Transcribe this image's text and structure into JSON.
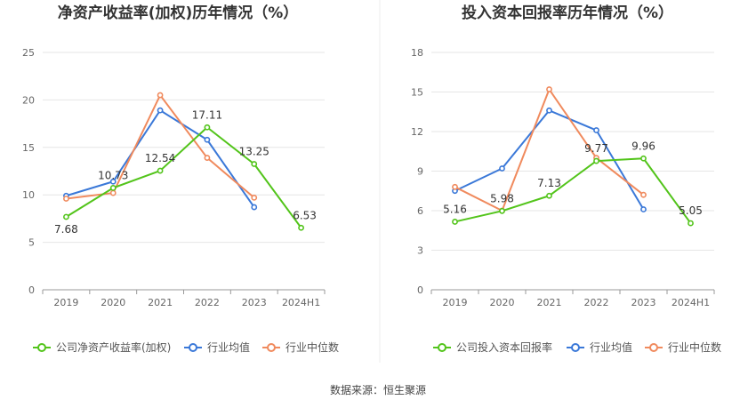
{
  "chart_data": [
    {
      "type": "line",
      "title": "净资产收益率(加权)历年情况（%）",
      "categories": [
        "2019",
        "2020",
        "2021",
        "2022",
        "2023",
        "2024H1"
      ],
      "ylim": [
        0,
        25
      ],
      "yticks": [
        "0",
        "5",
        "10",
        "15",
        "20",
        "25"
      ],
      "grid": true,
      "legend_placement": "bottom",
      "series": [
        {
          "name": "公司净资产收益率(加权)",
          "color": "#52c41a",
          "values": [
            7.68,
            10.73,
            12.54,
            17.11,
            13.25,
            6.53
          ],
          "labels": [
            "7.68",
            "10.73",
            "12.54",
            "17.11",
            "13.25",
            "6.53"
          ]
        },
        {
          "name": "行业均值",
          "color": "#3a78d8",
          "values": [
            9.9,
            11.4,
            18.9,
            15.8,
            8.7,
            null
          ]
        },
        {
          "name": "行业中位数",
          "color": "#f08a5d",
          "values": [
            9.6,
            10.2,
            20.5,
            13.9,
            9.7,
            null
          ]
        }
      ]
    },
    {
      "type": "line",
      "title": "投入资本回报率历年情况（%）",
      "categories": [
        "2019",
        "2020",
        "2021",
        "2022",
        "2023",
        "2024H1"
      ],
      "ylim": [
        0,
        18
      ],
      "yticks": [
        "0",
        "3",
        "6",
        "9",
        "12",
        "15",
        "18"
      ],
      "grid": true,
      "legend_placement": "bottom",
      "series": [
        {
          "name": "公司投入资本回报率",
          "color": "#52c41a",
          "values": [
            5.16,
            5.98,
            7.13,
            9.77,
            9.96,
            5.05
          ],
          "labels": [
            "5.16",
            "5.98",
            "7.13",
            "9.77",
            "9.96",
            "5.05"
          ]
        },
        {
          "name": "行业均值",
          "color": "#3a78d8",
          "values": [
            7.5,
            9.2,
            13.6,
            12.1,
            6.1,
            null
          ]
        },
        {
          "name": "行业中位数",
          "color": "#f08a5d",
          "values": [
            7.8,
            6.0,
            15.2,
            10.0,
            7.2,
            null
          ]
        }
      ]
    }
  ],
  "footer": {
    "source": "数据来源：恒生聚源"
  }
}
